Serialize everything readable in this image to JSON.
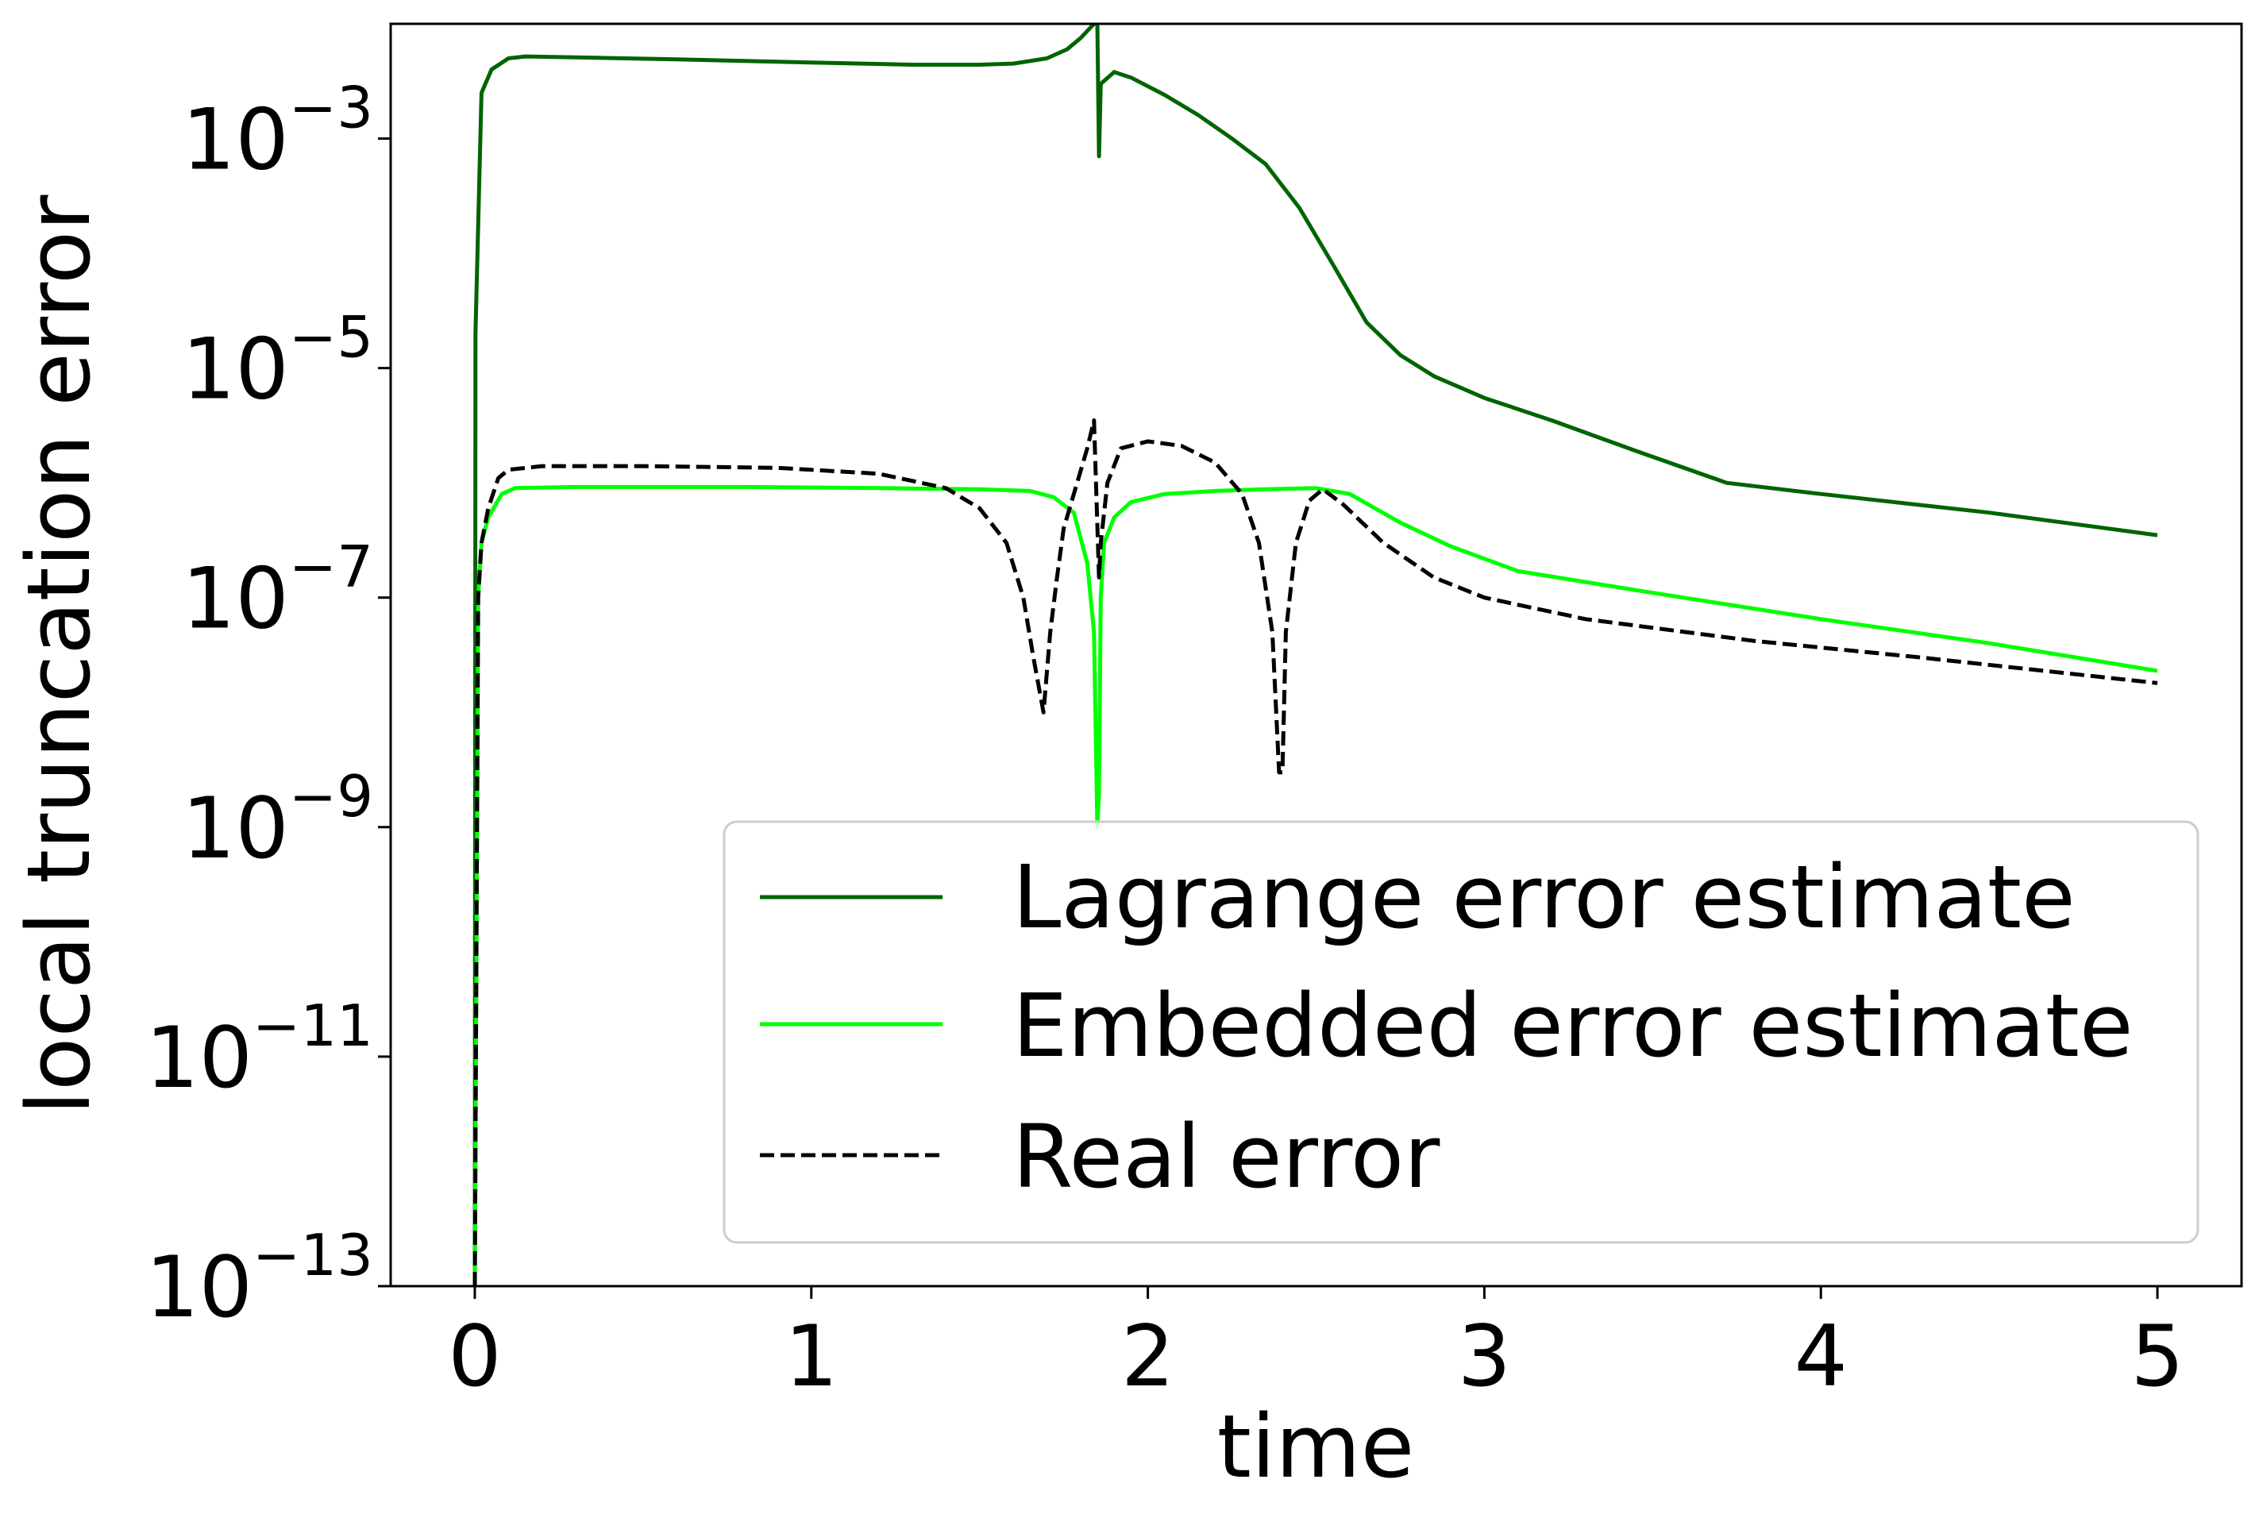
{
  "chart_data": {
    "type": "line",
    "title": "",
    "xlabel": "time",
    "ylabel": "local truncation error",
    "xlim": [
      -0.25,
      5.25
    ],
    "ylim": [
      1e-13,
      0.01
    ],
    "yscale": "log",
    "grid": false,
    "legend_position": "lower-right",
    "x_ticks": [
      {
        "value": 0,
        "label": "0"
      },
      {
        "value": 1,
        "label": "1"
      },
      {
        "value": 2,
        "label": "2"
      },
      {
        "value": 3,
        "label": "3"
      },
      {
        "value": 4,
        "label": "4"
      },
      {
        "value": 5,
        "label": "5"
      }
    ],
    "y_ticks": [
      {
        "value": 0.001,
        "base": "10",
        "exp": "−3"
      },
      {
        "value": 1e-05,
        "base": "10",
        "exp": "−5"
      },
      {
        "value": 1e-07,
        "base": "10",
        "exp": "−7"
      },
      {
        "value": 1e-09,
        "base": "10",
        "exp": "−9"
      },
      {
        "value": 1e-11,
        "base": "10",
        "exp": "−11"
      },
      {
        "value": 1e-13,
        "base": "10",
        "exp": "−13"
      }
    ],
    "series": [
      {
        "name": "Lagrange error estimate",
        "color": "#006400",
        "dash": "solid",
        "points": [
          [
            0,
            1e-13
          ],
          [
            0.002,
            2e-05
          ],
          [
            0.02,
            0.0025
          ],
          [
            0.05,
            0.004
          ],
          [
            0.1,
            0.005
          ],
          [
            0.15,
            0.0052
          ],
          [
            0.3,
            0.0051
          ],
          [
            0.6,
            0.0049
          ],
          [
            1.0,
            0.0046
          ],
          [
            1.3,
            0.0044
          ],
          [
            1.5,
            0.0044
          ],
          [
            1.6,
            0.0045
          ],
          [
            1.7,
            0.005
          ],
          [
            1.76,
            0.006
          ],
          [
            1.8,
            0.0075
          ],
          [
            1.84,
            0.01
          ],
          [
            1.85,
            0.01
          ],
          [
            1.855,
            0.0007
          ],
          [
            1.86,
            0.003
          ],
          [
            1.9,
            0.0038
          ],
          [
            1.95,
            0.0034
          ],
          [
            2.05,
            0.0024
          ],
          [
            2.15,
            0.0016
          ],
          [
            2.25,
            0.001
          ],
          [
            2.35,
            0.0006
          ],
          [
            2.45,
            0.00025
          ],
          [
            2.55,
            8e-05
          ],
          [
            2.65,
            2.5e-05
          ],
          [
            2.75,
            1.3e-05
          ],
          [
            2.85,
            8.5e-06
          ],
          [
            3.0,
            5.5e-06
          ],
          [
            3.2,
            3.5e-06
          ],
          [
            3.45,
            1.9e-06
          ],
          [
            3.72,
            1e-06
          ],
          [
            4.0,
            8e-07
          ],
          [
            4.5,
            5.5e-07
          ],
          [
            5.0,
            3.5e-07
          ]
        ]
      },
      {
        "name": "Embedded error estimate",
        "color": "#00ff00",
        "dash": "solid",
        "points": [
          [
            0,
            1e-13
          ],
          [
            0.01,
            1e-07
          ],
          [
            0.02,
            3e-07
          ],
          [
            0.04,
            5e-07
          ],
          [
            0.08,
            8e-07
          ],
          [
            0.12,
            9e-07
          ],
          [
            0.3,
            9.2e-07
          ],
          [
            0.8,
            9.2e-07
          ],
          [
            1.2,
            9e-07
          ],
          [
            1.5,
            8.8e-07
          ],
          [
            1.65,
            8.5e-07
          ],
          [
            1.72,
            7.5e-07
          ],
          [
            1.78,
            5.5e-07
          ],
          [
            1.82,
            2e-07
          ],
          [
            1.84,
            5e-08
          ],
          [
            1.85,
            1e-09
          ],
          [
            1.855,
            2e-09
          ],
          [
            1.86,
            1e-07
          ],
          [
            1.87,
            3e-07
          ],
          [
            1.9,
            5e-07
          ],
          [
            1.95,
            6.8e-07
          ],
          [
            2.05,
            8e-07
          ],
          [
            2.2,
            8.5e-07
          ],
          [
            2.35,
            8.8e-07
          ],
          [
            2.5,
            9e-07
          ],
          [
            2.6,
            8e-07
          ],
          [
            2.75,
            4.5e-07
          ],
          [
            2.9,
            2.8e-07
          ],
          [
            3.1,
            1.7e-07
          ],
          [
            3.5,
            1.1e-07
          ],
          [
            4.0,
            6.5e-08
          ],
          [
            4.5,
            4e-08
          ],
          [
            5.0,
            2.3e-08
          ]
        ]
      },
      {
        "name": "Real error",
        "color": "#000000",
        "dash": "dashed",
        "points": [
          [
            0,
            1e-13
          ],
          [
            0.01,
            1e-07
          ],
          [
            0.02,
            3e-07
          ],
          [
            0.04,
            6e-07
          ],
          [
            0.07,
            1.1e-06
          ],
          [
            0.1,
            1.3e-06
          ],
          [
            0.2,
            1.4e-06
          ],
          [
            0.5,
            1.4e-06
          ],
          [
            0.9,
            1.35e-06
          ],
          [
            1.2,
            1.2e-06
          ],
          [
            1.4,
            9e-07
          ],
          [
            1.5,
            6e-07
          ],
          [
            1.58,
            3e-07
          ],
          [
            1.63,
            1e-07
          ],
          [
            1.66,
            3e-08
          ],
          [
            1.69,
            1e-08
          ],
          [
            1.71,
            5e-08
          ],
          [
            1.73,
            1.5e-07
          ],
          [
            1.75,
            4e-07
          ],
          [
            1.78,
            8e-07
          ],
          [
            1.82,
            2e-06
          ],
          [
            1.84,
            3.5e-06
          ],
          [
            1.855,
            1.5e-07
          ],
          [
            1.86,
            3e-07
          ],
          [
            1.88,
            1e-06
          ],
          [
            1.92,
            2e-06
          ],
          [
            2.0,
            2.3e-06
          ],
          [
            2.1,
            2.1e-06
          ],
          [
            2.2,
            1.5e-06
          ],
          [
            2.28,
            8e-07
          ],
          [
            2.33,
            3e-07
          ],
          [
            2.37,
            5e-08
          ],
          [
            2.39,
            3e-09
          ],
          [
            2.4,
            3e-09
          ],
          [
            2.41,
            5e-08
          ],
          [
            2.44,
            3e-07
          ],
          [
            2.48,
            7e-07
          ],
          [
            2.52,
            8.8e-07
          ],
          [
            2.58,
            6.5e-07
          ],
          [
            2.7,
            3e-07
          ],
          [
            2.85,
            1.5e-07
          ],
          [
            3.0,
            1e-07
          ],
          [
            3.3,
            6.5e-08
          ],
          [
            3.8,
            4.2e-08
          ],
          [
            4.3,
            3e-08
          ],
          [
            5.0,
            1.8e-08
          ]
        ]
      }
    ]
  }
}
